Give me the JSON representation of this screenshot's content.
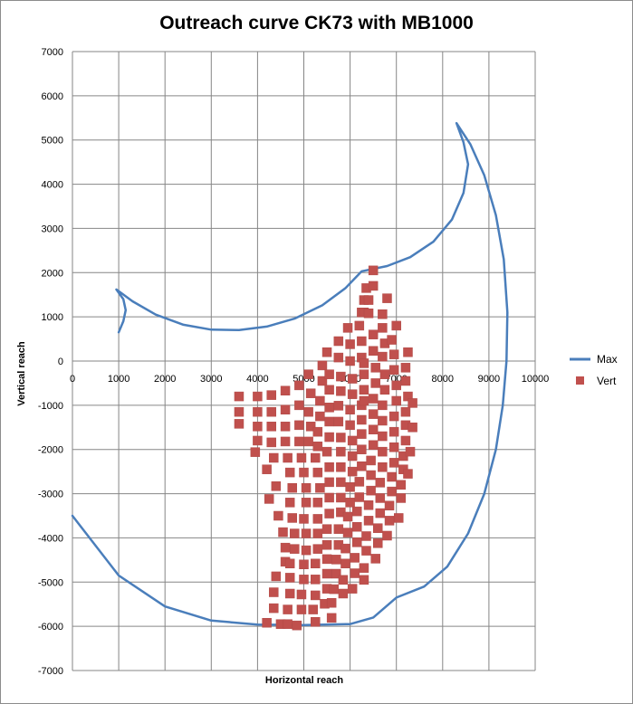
{
  "chart_data": {
    "type": "scatter",
    "title": "Outreach curve CK73 with MB1000",
    "xlabel": "Horizontal reach",
    "ylabel": "Vertical reach",
    "xlim": [
      0,
      10000
    ],
    "ylim": [
      -7000,
      7000
    ],
    "x_ticks": [
      "0",
      "1000",
      "2000",
      "3000",
      "4000",
      "5000",
      "6000",
      "7000",
      "8000",
      "9000",
      "10000"
    ],
    "y_ticks": [
      "7000",
      "6000",
      "5000",
      "4000",
      "3000",
      "2000",
      "1000",
      "0",
      "-1000",
      "-2000",
      "-3000",
      "-4000",
      "-5000",
      "-6000",
      "-7000"
    ],
    "grid": true,
    "legend_position": "right",
    "colors": {
      "Max": "#4a7ebb",
      "Vert": "#c0504d"
    },
    "series": [
      {
        "name": "Max",
        "kind": "line",
        "points": [
          [
            1000,
            650
          ],
          [
            1100,
            900
          ],
          [
            1150,
            1150
          ],
          [
            1100,
            1400
          ],
          [
            950,
            1620
          ],
          [
            1300,
            1350
          ],
          [
            1800,
            1050
          ],
          [
            2400,
            820
          ],
          [
            3000,
            710
          ],
          [
            3600,
            700
          ],
          [
            4200,
            780
          ],
          [
            4800,
            960
          ],
          [
            5400,
            1260
          ],
          [
            5900,
            1650
          ],
          [
            6250,
            2030
          ],
          [
            6800,
            2150
          ],
          [
            7300,
            2350
          ],
          [
            7800,
            2700
          ],
          [
            8200,
            3200
          ],
          [
            8450,
            3800
          ],
          [
            8550,
            4450
          ],
          [
            8450,
            4950
          ],
          [
            8300,
            5380
          ],
          [
            8600,
            4900
          ],
          [
            8900,
            4200
          ],
          [
            9150,
            3300
          ],
          [
            9320,
            2300
          ],
          [
            9400,
            1100
          ],
          [
            9380,
            0
          ],
          [
            9300,
            -1000
          ],
          [
            9150,
            -2000
          ],
          [
            8900,
            -3000
          ],
          [
            8550,
            -3900
          ],
          [
            8100,
            -4650
          ],
          [
            7600,
            -5100
          ],
          [
            7000,
            -5350
          ],
          [
            6500,
            -5800
          ],
          [
            6000,
            -5950
          ],
          [
            5000,
            -5970
          ],
          [
            4000,
            -5960
          ],
          [
            3000,
            -5870
          ],
          [
            2000,
            -5550
          ],
          [
            1000,
            -4850
          ],
          [
            0,
            -3500
          ]
        ]
      },
      {
        "name": "Vert",
        "kind": "scatter",
        "points": [
          [
            3600,
            -800
          ],
          [
            3600,
            -1150
          ],
          [
            3600,
            -1420
          ],
          [
            4000,
            -800
          ],
          [
            4000,
            -1150
          ],
          [
            4000,
            -1480
          ],
          [
            4000,
            -1800
          ],
          [
            3950,
            -2060
          ],
          [
            4300,
            -770
          ],
          [
            4300,
            -1150
          ],
          [
            4300,
            -1480
          ],
          [
            4300,
            -1840
          ],
          [
            4200,
            -2450
          ],
          [
            4250,
            -3120
          ],
          [
            4600,
            -670
          ],
          [
            4600,
            -1100
          ],
          [
            4600,
            -1480
          ],
          [
            4600,
            -1820
          ],
          [
            4350,
            -2190
          ],
          [
            4400,
            -2830
          ],
          [
            4450,
            -3500
          ],
          [
            4550,
            -3870
          ],
          [
            4600,
            -4220
          ],
          [
            4600,
            -4540
          ],
          [
            4400,
            -4870
          ],
          [
            4350,
            -5230
          ],
          [
            4350,
            -5590
          ],
          [
            4200,
            -5920
          ],
          [
            4900,
            -550
          ],
          [
            4900,
            -1000
          ],
          [
            4900,
            -1450
          ],
          [
            4900,
            -1820
          ],
          [
            4650,
            -2190
          ],
          [
            4700,
            -2520
          ],
          [
            4750,
            -2870
          ],
          [
            4700,
            -3200
          ],
          [
            4750,
            -3550
          ],
          [
            4800,
            -3900
          ],
          [
            4800,
            -4250
          ],
          [
            4700,
            -4580
          ],
          [
            4700,
            -4900
          ],
          [
            4700,
            -5260
          ],
          [
            4650,
            -5620
          ],
          [
            4500,
            -5950
          ],
          [
            5100,
            -300
          ],
          [
            5150,
            -730
          ],
          [
            5100,
            -1150
          ],
          [
            5150,
            -1480
          ],
          [
            5100,
            -1820
          ],
          [
            4950,
            -2190
          ],
          [
            5000,
            -2520
          ],
          [
            5050,
            -2870
          ],
          [
            5050,
            -3200
          ],
          [
            5000,
            -3570
          ],
          [
            5050,
            -3900
          ],
          [
            5050,
            -4280
          ],
          [
            5000,
            -4600
          ],
          [
            5000,
            -4940
          ],
          [
            4950,
            -5280
          ],
          [
            4950,
            -5620
          ],
          [
            4850,
            -5980
          ],
          [
            5400,
            -100
          ],
          [
            5400,
            -450
          ],
          [
            5350,
            -900
          ],
          [
            5350,
            -1250
          ],
          [
            5300,
            -1600
          ],
          [
            5300,
            -1930
          ],
          [
            5250,
            -2190
          ],
          [
            5300,
            -2520
          ],
          [
            5350,
            -2870
          ],
          [
            5300,
            -3200
          ],
          [
            5300,
            -3570
          ],
          [
            5300,
            -3900
          ],
          [
            5300,
            -4250
          ],
          [
            5250,
            -4580
          ],
          [
            5250,
            -4940
          ],
          [
            5250,
            -5300
          ],
          [
            5200,
            -5620
          ],
          [
            4650,
            -5950
          ],
          [
            5500,
            200
          ],
          [
            5550,
            -300
          ],
          [
            5550,
            -650
          ],
          [
            5550,
            -1050
          ],
          [
            5550,
            -1370
          ],
          [
            5550,
            -1720
          ],
          [
            5500,
            -2050
          ],
          [
            5550,
            -2400
          ],
          [
            5550,
            -2740
          ],
          [
            5550,
            -3090
          ],
          [
            5550,
            -3450
          ],
          [
            5500,
            -3800
          ],
          [
            5500,
            -4160
          ],
          [
            5500,
            -4480
          ],
          [
            5500,
            -4810
          ],
          [
            5500,
            -5150
          ],
          [
            5450,
            -5490
          ],
          [
            5250,
            -5900
          ],
          [
            5750,
            450
          ],
          [
            5750,
            80
          ],
          [
            5800,
            -350
          ],
          [
            5800,
            -680
          ],
          [
            5750,
            -1010
          ],
          [
            5750,
            -1370
          ],
          [
            5800,
            -1730
          ],
          [
            5800,
            -2050
          ],
          [
            5800,
            -2400
          ],
          [
            5800,
            -2740
          ],
          [
            5800,
            -3090
          ],
          [
            5800,
            -3420
          ],
          [
            5750,
            -3800
          ],
          [
            5750,
            -4160
          ],
          [
            5700,
            -4490
          ],
          [
            5700,
            -4810
          ],
          [
            5650,
            -5160
          ],
          [
            5600,
            -5470
          ],
          [
            5600,
            -5810
          ],
          [
            5950,
            750
          ],
          [
            6000,
            380
          ],
          [
            6000,
            0
          ],
          [
            6050,
            -400
          ],
          [
            6050,
            -750
          ],
          [
            6000,
            -1100
          ],
          [
            6000,
            -1450
          ],
          [
            6050,
            -1800
          ],
          [
            6050,
            -2150
          ],
          [
            6050,
            -2500
          ],
          [
            6000,
            -2850
          ],
          [
            6000,
            -3200
          ],
          [
            5950,
            -3520
          ],
          [
            5950,
            -3880
          ],
          [
            5900,
            -4240
          ],
          [
            5900,
            -4580
          ],
          [
            5850,
            -4950
          ],
          [
            5850,
            -5260
          ],
          [
            6250,
            1100
          ],
          [
            6200,
            800
          ],
          [
            6250,
            450
          ],
          [
            6250,
            80
          ],
          [
            6300,
            -300
          ],
          [
            6300,
            -650
          ],
          [
            6250,
            -1000
          ],
          [
            6250,
            -1330
          ],
          [
            6250,
            -1650
          ],
          [
            6250,
            -2000
          ],
          [
            6250,
            -2380
          ],
          [
            6200,
            -2730
          ],
          [
            6200,
            -3080
          ],
          [
            6150,
            -3400
          ],
          [
            6150,
            -3750
          ],
          [
            6150,
            -4100
          ],
          [
            6100,
            -4450
          ],
          [
            6100,
            -4800
          ],
          [
            6050,
            -5150
          ],
          [
            6350,
            1650
          ],
          [
            6300,
            1380
          ],
          [
            6300,
            1100
          ],
          [
            6300,
            -50
          ],
          [
            6300,
            -900
          ],
          [
            6500,
            2050
          ],
          [
            6500,
            1700
          ],
          [
            6400,
            1380
          ],
          [
            6400,
            1080
          ],
          [
            6500,
            600
          ],
          [
            6500,
            230
          ],
          [
            6550,
            -150
          ],
          [
            6550,
            -500
          ],
          [
            6500,
            -850
          ],
          [
            6500,
            -1200
          ],
          [
            6500,
            -1550
          ],
          [
            6500,
            -1900
          ],
          [
            6450,
            -2250
          ],
          [
            6450,
            -2580
          ],
          [
            6450,
            -2930
          ],
          [
            6400,
            -3260
          ],
          [
            6400,
            -3610
          ],
          [
            6350,
            -3960
          ],
          [
            6350,
            -4290
          ],
          [
            6300,
            -4680
          ],
          [
            6300,
            -4950
          ],
          [
            6800,
            1420
          ],
          [
            6700,
            1060
          ],
          [
            6700,
            750
          ],
          [
            6750,
            400
          ],
          [
            6700,
            100
          ],
          [
            6750,
            -300
          ],
          [
            6750,
            -650
          ],
          [
            6700,
            -1000
          ],
          [
            6700,
            -1350
          ],
          [
            6700,
            -1700
          ],
          [
            6700,
            -2050
          ],
          [
            6700,
            -2400
          ],
          [
            6650,
            -2750
          ],
          [
            6650,
            -3100
          ],
          [
            6650,
            -3440
          ],
          [
            6600,
            -3780
          ],
          [
            6600,
            -4120
          ],
          [
            6550,
            -4470
          ],
          [
            7000,
            800
          ],
          [
            6900,
            480
          ],
          [
            6950,
            150
          ],
          [
            6950,
            -200
          ],
          [
            7000,
            -550
          ],
          [
            7000,
            -900
          ],
          [
            6950,
            -1250
          ],
          [
            6950,
            -1600
          ],
          [
            6950,
            -1950
          ],
          [
            6950,
            -2300
          ],
          [
            6900,
            -2620
          ],
          [
            6900,
            -2950
          ],
          [
            6850,
            -3270
          ],
          [
            6850,
            -3610
          ],
          [
            6800,
            -3950
          ],
          [
            7250,
            200
          ],
          [
            7200,
            -150
          ],
          [
            7200,
            -450
          ],
          [
            7250,
            -800
          ],
          [
            7200,
            -1150
          ],
          [
            7200,
            -1450
          ],
          [
            7200,
            -1800
          ],
          [
            7150,
            -2150
          ],
          [
            7150,
            -2450
          ],
          [
            7100,
            -2800
          ],
          [
            7100,
            -3100
          ],
          [
            7350,
            -950
          ],
          [
            7350,
            -1500
          ],
          [
            7300,
            -2050
          ],
          [
            7250,
            -2550
          ],
          [
            7050,
            -3550
          ]
        ]
      }
    ]
  }
}
